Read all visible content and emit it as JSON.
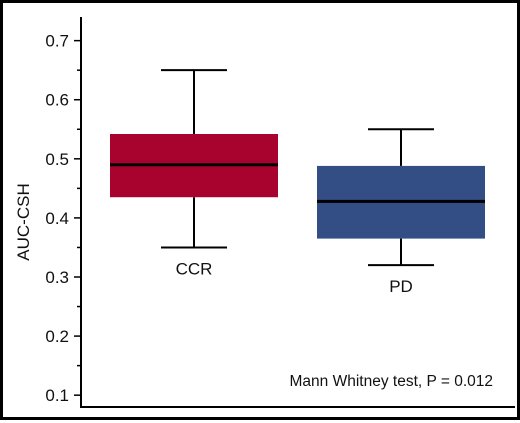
{
  "chart_data": {
    "type": "box",
    "ylabel": "AUC-CSH",
    "ylim": [
      0.08,
      0.74
    ],
    "yticks": [
      0.1,
      0.2,
      0.3,
      0.4,
      0.5,
      0.6,
      0.7
    ],
    "ytick_labels": [
      "0.1",
      "0.2",
      "0.3",
      "0.4",
      "0.5",
      "0.6",
      "0.7"
    ],
    "minor_tick_step": 0.05,
    "categories": [
      "CCR",
      "PD"
    ],
    "boxes": [
      {
        "label": "CCR",
        "whisker_low": 0.35,
        "q1": 0.435,
        "median": 0.49,
        "q3": 0.542,
        "whisker_high": 0.65,
        "color": "#a8022e"
      },
      {
        "label": "PD",
        "whisker_low": 0.32,
        "q1": 0.365,
        "median": 0.428,
        "q3": 0.488,
        "whisker_high": 0.55,
        "color": "#324e84"
      }
    ],
    "annotation": "Mann Whitney test, P = 0.012",
    "grid": false,
    "legend": "none"
  }
}
